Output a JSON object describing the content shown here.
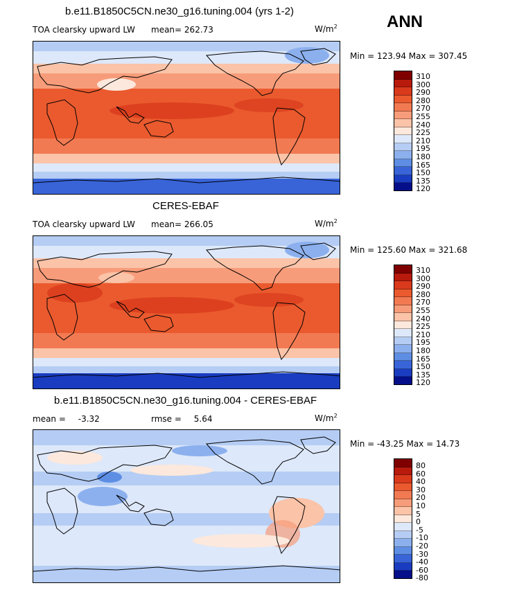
{
  "season": "ANN",
  "panels": [
    {
      "title": "b.e11.B1850C5CN.ne30_g16.tuning.004 (yrs 1-2)",
      "variable": "TOA clearsky upward LW",
      "stat": "mean=",
      "stat_value": "262.73",
      "units_base": "W/m",
      "units_exp": "2",
      "minmax": "Min = 123.94 Max = 307.45",
      "levels": [
        "310",
        "300",
        "290",
        "280",
        "270",
        "255",
        "240",
        "225",
        "210",
        "195",
        "180",
        "165",
        "150",
        "135",
        "120"
      ]
    },
    {
      "title": "CERES-EBAF",
      "variable": "TOA clearsky upward LW",
      "stat": "mean=",
      "stat_value": "266.05",
      "units_base": "W/m",
      "units_exp": "2",
      "minmax": "Min = 125.60 Max = 321.68",
      "levels": [
        "310",
        "300",
        "290",
        "280",
        "270",
        "255",
        "240",
        "225",
        "210",
        "195",
        "180",
        "165",
        "150",
        "135",
        "120"
      ]
    },
    {
      "title": "b.e11.B1850C5CN.ne30_g16.tuning.004 - CERES-EBAF",
      "mean_label": "mean =",
      "mean_value": "-3.32",
      "rmse_label": "rmse =",
      "rmse_value": "5.64",
      "units_base": "W/m",
      "units_exp": "2",
      "minmax": "Min = -43.25 Max =  14.73",
      "levels": [
        "80",
        "60",
        "40",
        "30",
        "20",
        "10",
        "5",
        "0",
        "-5",
        "-10",
        "-20",
        "-30",
        "-40",
        "-60",
        "-80"
      ]
    }
  ],
  "colors": {
    "abs_scale": [
      "#800000",
      "#b81a0c",
      "#d93a1c",
      "#ea5a2e",
      "#f27a52",
      "#f79c7a",
      "#fbc3a8",
      "#fce8dc",
      "#dde8fa",
      "#b5cdf4",
      "#8cb0ee",
      "#5e8ee4",
      "#3864d8",
      "#1a3cc0",
      "#050f8a"
    ],
    "diff_scale": [
      "#800000",
      "#b81a0c",
      "#d93a1c",
      "#ea5a2e",
      "#f27a52",
      "#f79c7a",
      "#fbc3a8",
      "#fce8dc",
      "#dde8fa",
      "#b5cdf4",
      "#8cb0ee",
      "#5e8ee4",
      "#3864d8",
      "#1a3cc0",
      "#050f8a"
    ]
  }
}
